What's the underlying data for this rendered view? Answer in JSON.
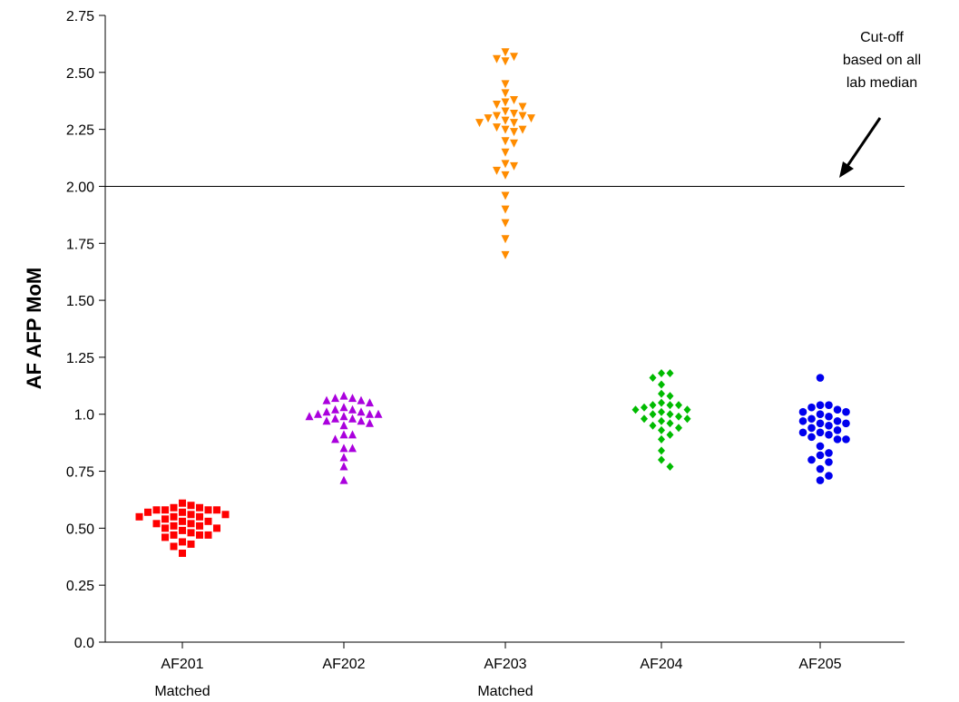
{
  "chart_data": {
    "type": "scatter",
    "title": "",
    "ylabel": "AF AFP MoM",
    "xlabel": "",
    "ylim": [
      0,
      2.75
    ],
    "yticks": [
      {
        "value": 0,
        "label": "0.0"
      },
      {
        "value": 0.25,
        "label": "0.25"
      },
      {
        "value": 0.5,
        "label": "0.50"
      },
      {
        "value": 0.75,
        "label": "0.75"
      },
      {
        "value": 1.0,
        "label": "1.0"
      },
      {
        "value": 1.25,
        "label": "1.25"
      },
      {
        "value": 1.5,
        "label": "1.50"
      },
      {
        "value": 1.75,
        "label": "1.75"
      },
      {
        "value": 2.0,
        "label": "2.00"
      },
      {
        "value": 2.25,
        "label": "2.25"
      },
      {
        "value": 2.5,
        "label": "2.50"
      },
      {
        "value": 2.75,
        "label": "2.75"
      }
    ],
    "grid": false,
    "legend": "none",
    "cutoff": {
      "value": 2.0,
      "annotation": [
        "Cut-off",
        "based on all",
        "lab median"
      ]
    },
    "categories": [
      {
        "name": "AF201",
        "sublabel": "Matched"
      },
      {
        "name": "AF202",
        "sublabel": ""
      },
      {
        "name": "AF203",
        "sublabel": "Matched"
      },
      {
        "name": "AF204",
        "sublabel": ""
      },
      {
        "name": "AF205",
        "sublabel": ""
      }
    ],
    "series": [
      {
        "category": "AF201",
        "marker": "square",
        "color": "#ff0000",
        "values": [
          0.61,
          0.6,
          0.59,
          0.59,
          0.58,
          0.58,
          0.58,
          0.58,
          0.57,
          0.57,
          0.56,
          0.56,
          0.55,
          0.55,
          0.55,
          0.54,
          0.53,
          0.53,
          0.52,
          0.52,
          0.51,
          0.51,
          0.5,
          0.5,
          0.49,
          0.48,
          0.47,
          0.47,
          0.47,
          0.46,
          0.44,
          0.43,
          0.42,
          0.39
        ]
      },
      {
        "category": "AF202",
        "marker": "triangle-up",
        "color": "#aa00dd",
        "values": [
          1.08,
          1.07,
          1.07,
          1.06,
          1.06,
          1.05,
          1.03,
          1.02,
          1.02,
          1.01,
          1.01,
          1.0,
          1.0,
          1.0,
          0.99,
          0.99,
          0.98,
          0.98,
          0.97,
          0.97,
          0.96,
          0.95,
          0.91,
          0.91,
          0.89,
          0.85,
          0.85,
          0.81,
          0.77,
          0.71
        ]
      },
      {
        "category": "AF203",
        "marker": "triangle-down",
        "color": "#ff8c00",
        "values": [
          2.59,
          2.57,
          2.56,
          2.55,
          2.45,
          2.41,
          2.38,
          2.37,
          2.36,
          2.35,
          2.33,
          2.32,
          2.31,
          2.31,
          2.3,
          2.3,
          2.29,
          2.28,
          2.28,
          2.26,
          2.25,
          2.25,
          2.24,
          2.2,
          2.19,
          2.15,
          2.1,
          2.09,
          2.07,
          2.05,
          1.96,
          1.9,
          1.84,
          1.77,
          1.7
        ]
      },
      {
        "category": "AF204",
        "marker": "diamond",
        "color": "#00bb00",
        "values": [
          1.18,
          1.18,
          1.16,
          1.13,
          1.09,
          1.08,
          1.05,
          1.04,
          1.04,
          1.04,
          1.03,
          1.02,
          1.02,
          1.01,
          1.0,
          1.0,
          0.99,
          0.98,
          0.98,
          0.97,
          0.96,
          0.95,
          0.94,
          0.93,
          0.91,
          0.89,
          0.84,
          0.8,
          0.77
        ]
      },
      {
        "category": "AF205",
        "marker": "circle",
        "color": "#0000ee",
        "values": [
          1.16,
          1.04,
          1.04,
          1.03,
          1.02,
          1.01,
          1.01,
          1.0,
          0.99,
          0.98,
          0.97,
          0.97,
          0.96,
          0.96,
          0.95,
          0.94,
          0.93,
          0.92,
          0.92,
          0.91,
          0.9,
          0.89,
          0.89,
          0.86,
          0.83,
          0.82,
          0.8,
          0.79,
          0.76,
          0.73,
          0.71
        ]
      }
    ]
  }
}
